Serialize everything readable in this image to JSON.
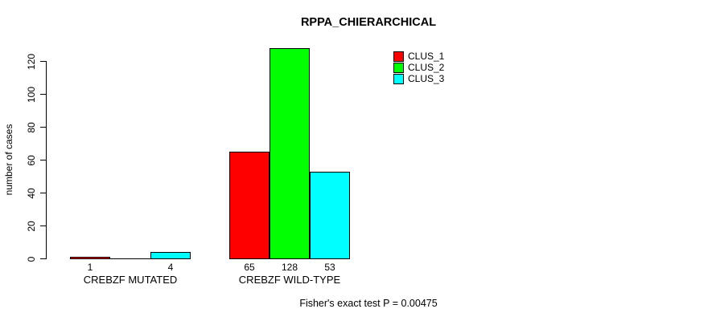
{
  "title": "RPPA_CHIERARCHICAL",
  "footer": "Fisher's exact test P = 0.00475",
  "y_axis": {
    "label": "number of cases",
    "ticks": [
      0,
      20,
      40,
      60,
      80,
      100,
      120
    ]
  },
  "legend": {
    "position": "top-right",
    "items": [
      {
        "label": "CLUS_1",
        "color": "#ff0000"
      },
      {
        "label": "CLUS_2",
        "color": "#00ff00"
      },
      {
        "label": "CLUS_3",
        "color": "#00ffff"
      }
    ]
  },
  "chart_data": {
    "type": "bar",
    "title": "RPPA_CHIERARCHICAL",
    "xlabel": "",
    "ylabel": "number of cases",
    "ylim": [
      0,
      128
    ],
    "grid": false,
    "legend_position": "top-right",
    "categories": [
      "CREBZF MUTATED",
      "CREBZF WILD-TYPE"
    ],
    "series": [
      {
        "name": "CLUS_1",
        "color": "#ff0000",
        "values": [
          1,
          65
        ]
      },
      {
        "name": "CLUS_2",
        "color": "#00ff00",
        "values": [
          0,
          128
        ]
      },
      {
        "name": "CLUS_3",
        "color": "#00ffff",
        "values": [
          4,
          53
        ]
      }
    ],
    "bar_value_labels": [
      [
        "1",
        "",
        "4"
      ],
      [
        "65",
        "128",
        "53"
      ]
    ],
    "annotation": "Fisher's exact test P = 0.00475"
  }
}
